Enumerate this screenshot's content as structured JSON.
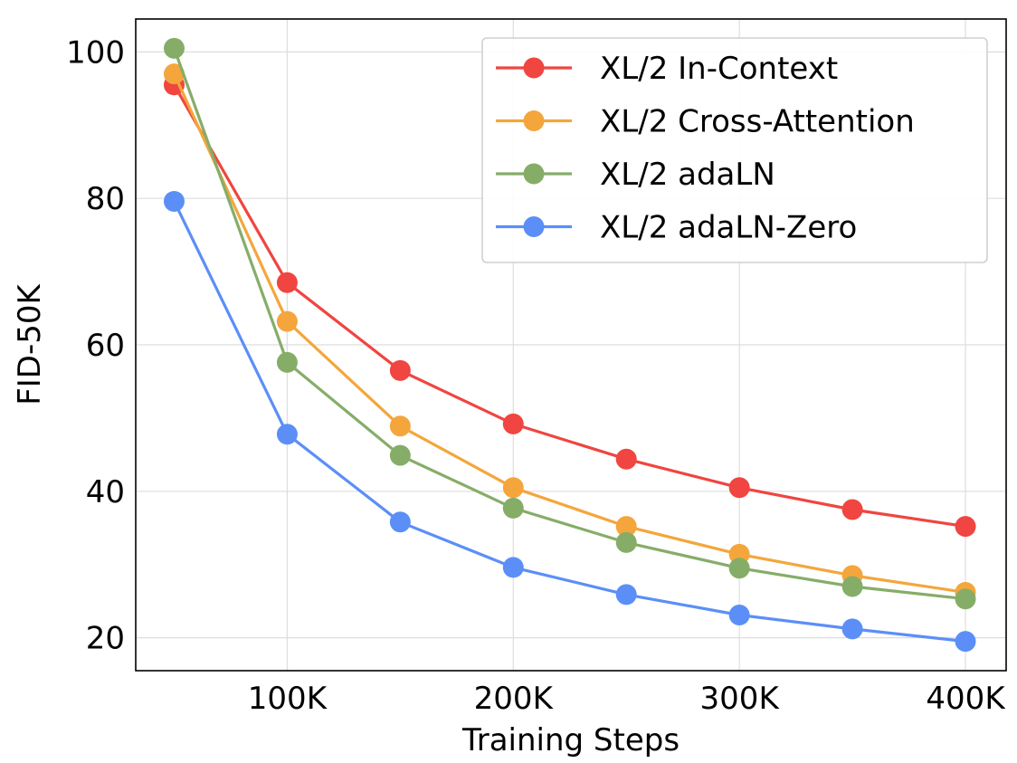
{
  "chart_data": {
    "type": "line",
    "title": "",
    "xlabel": "Training Steps",
    "ylabel": "FID-50K",
    "x": [
      50000,
      100000,
      150000,
      200000,
      250000,
      300000,
      350000,
      400000
    ],
    "xticks": [
      100000,
      200000,
      300000,
      400000
    ],
    "xtick_labels": [
      "100K",
      "200K",
      "300K",
      "400K"
    ],
    "yticks": [
      20,
      40,
      60,
      80,
      100
    ],
    "ytick_labels": [
      "20",
      "40",
      "60",
      "80",
      "100"
    ],
    "xlim": [
      33000,
      418000
    ],
    "ylim": [
      15.5,
      104.5
    ],
    "grid": true,
    "legend_position": "top-right",
    "series": [
      {
        "name": "XL/2 In-Context",
        "color": "#f04540",
        "values": [
          95.5,
          68.5,
          56.5,
          49.2,
          44.4,
          40.5,
          37.5,
          35.2
        ]
      },
      {
        "name": "XL/2 Cross-Attention",
        "color": "#f4a63c",
        "values": [
          97.0,
          63.2,
          48.9,
          40.5,
          35.2,
          31.4,
          28.5,
          26.2
        ]
      },
      {
        "name": "XL/2 adaLN",
        "color": "#86ad68",
        "values": [
          100.5,
          57.6,
          44.9,
          37.7,
          33.0,
          29.5,
          27.0,
          25.3
        ]
      },
      {
        "name": "XL/2 adaLN-Zero",
        "color": "#5b8ff7",
        "values": [
          79.6,
          47.8,
          35.8,
          29.6,
          25.9,
          23.1,
          21.2,
          19.5
        ]
      }
    ]
  }
}
